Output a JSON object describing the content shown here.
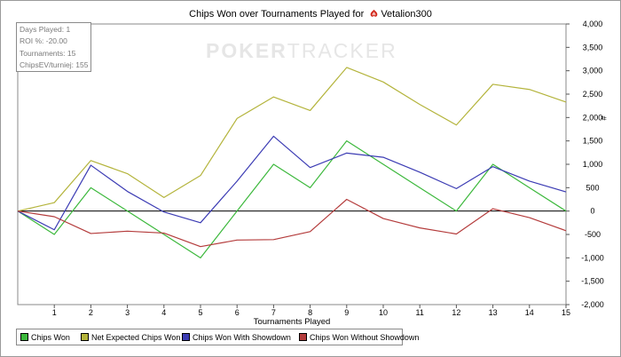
{
  "chart_data": {
    "type": "line",
    "title_prefix": "Chips Won over Tournaments Played for",
    "player": "Vetalion300",
    "xlabel": "Tournaments Played",
    "ylabel": "#",
    "x": [
      0,
      1,
      2,
      3,
      4,
      5,
      6,
      7,
      8,
      9,
      10,
      11,
      12,
      13,
      14,
      15
    ],
    "xlim": [
      0,
      15
    ],
    "ylim": [
      -2000,
      4000
    ],
    "x_ticks": [
      1,
      2,
      3,
      4,
      5,
      6,
      7,
      8,
      9,
      10,
      11,
      12,
      13,
      14,
      15
    ],
    "y_ticks": [
      -2000,
      -1500,
      -1000,
      -500,
      0,
      500,
      1000,
      1500,
      2000,
      2500,
      3000,
      3500,
      4000
    ],
    "y_tick_labels": [
      "-2,000",
      "-1,500",
      "-1,000",
      "-500",
      "0",
      "500",
      "1,000",
      "1,500",
      "2,000",
      "2,500",
      "3,000",
      "3,500",
      "4,000"
    ],
    "grid": false,
    "zero_line": true,
    "legend_position": "bottom-left",
    "series": [
      {
        "name": "Chips Won",
        "color": "#3cb83c",
        "values": [
          0,
          -500,
          500,
          0,
          -500,
          -1000,
          0,
          1000,
          500,
          1500,
          1000,
          500,
          0,
          1000,
          500,
          0
        ]
      },
      {
        "name": "Net Expected Chips Won",
        "color": "#b4b43c",
        "values": [
          0,
          180,
          1080,
          800,
          290,
          760,
          1980,
          2440,
          2150,
          3070,
          2760,
          2280,
          1840,
          2710,
          2600,
          2330
        ]
      },
      {
        "name": "Chips Won With Showdown",
        "color": "#3c3cb4",
        "values": [
          0,
          -400,
          980,
          420,
          -20,
          -250,
          640,
          1600,
          930,
          1240,
          1150,
          830,
          480,
          950,
          640,
          410
        ]
      },
      {
        "name": "Chips Won Without Showdown",
        "color": "#b43c3c",
        "values": [
          0,
          -120,
          -480,
          -430,
          -470,
          -760,
          -620,
          -610,
          -440,
          250,
          -160,
          -360,
          -490,
          50,
          -140,
          -420
        ]
      }
    ]
  },
  "stats": [
    "Days Played: 1",
    "ROI %: -20.00",
    "Tournaments: 15",
    "ChipsEV/turniej: 155"
  ],
  "watermark": {
    "part1": "POKER",
    "part2": "TRACKER"
  },
  "icons": {
    "player_site_icon": "poker-site-logo-icon"
  }
}
